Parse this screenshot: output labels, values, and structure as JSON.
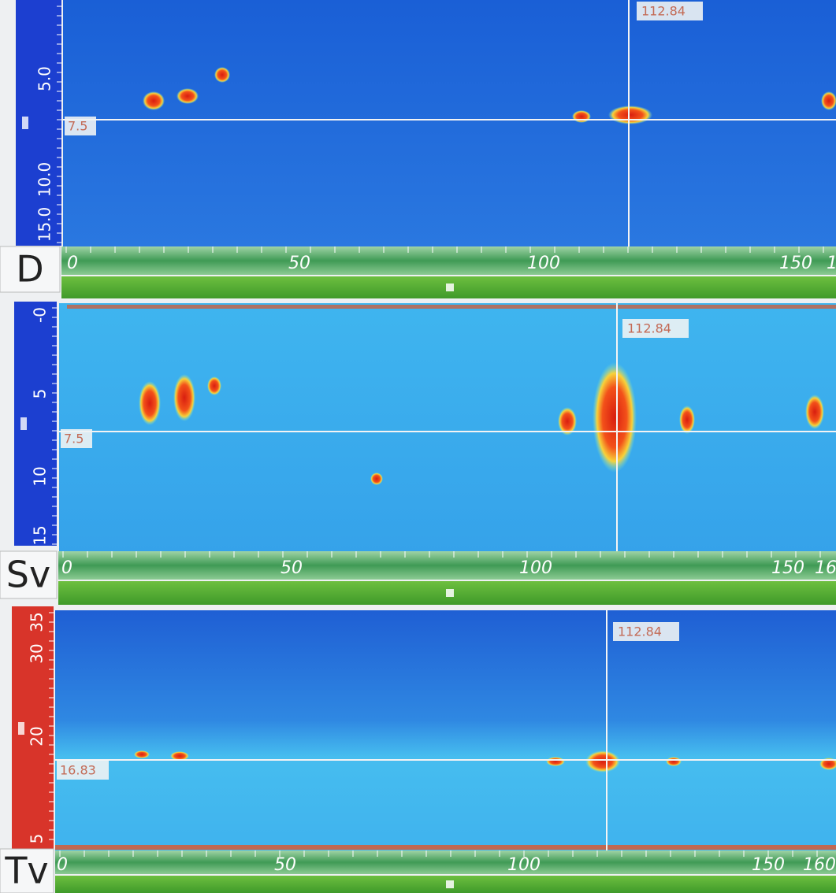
{
  "panels": [
    {
      "label": "D",
      "y_ticks": [
        "5.0",
        "10.0",
        "15.0"
      ],
      "x_ticks": [
        "0",
        "50",
        "100",
        "150",
        "1"
      ],
      "cursor_x_label": "112.84",
      "cursor_y_label": "7.5"
    },
    {
      "label": "Sv",
      "y_ticks": [
        "-0",
        "5",
        "10",
        "15"
      ],
      "x_ticks": [
        "0",
        "50",
        "100",
        "150",
        "16"
      ],
      "cursor_x_label": "112.84",
      "cursor_y_label": "7.5"
    },
    {
      "label": "Tv",
      "y_ticks": [
        "35",
        "30",
        "20",
        "5"
      ],
      "x_ticks": [
        "0",
        "50",
        "100",
        "150",
        "160"
      ],
      "cursor_x_label": "112.84",
      "cursor_y_label": "16.83"
    }
  ]
}
